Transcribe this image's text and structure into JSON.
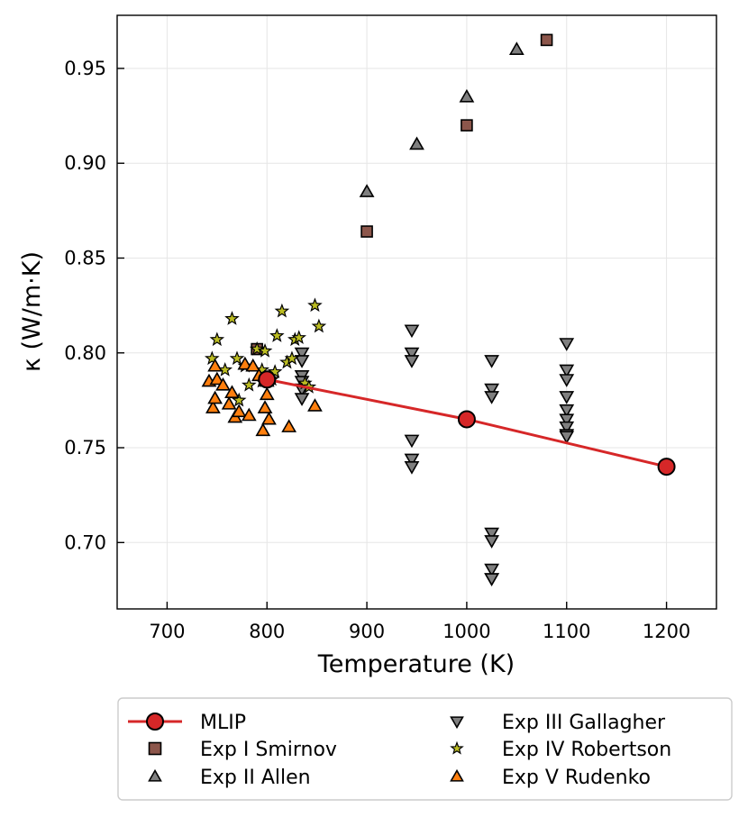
{
  "chart_data": {
    "type": "scatter",
    "title": "",
    "xlabel": "Temperature (K)",
    "ylabel": "κ (W/m·K)",
    "xlim": [
      650,
      1250
    ],
    "ylim": [
      0.665,
      0.978
    ],
    "xticks": [
      700,
      800,
      900,
      1000,
      1100,
      1200
    ],
    "yticks": [
      0.7,
      0.75,
      0.8,
      0.85,
      0.9,
      0.95
    ],
    "xtick_labels": [
      "700",
      "800",
      "900",
      "1000",
      "1100",
      "1200"
    ],
    "ytick_labels": [
      "0.70",
      "0.75",
      "0.80",
      "0.85",
      "0.90",
      "0.95"
    ],
    "grid": true,
    "legend_position": "bottom, outside plot, two columns",
    "series": [
      {
        "name": "MLIP",
        "kind": "line-marker",
        "marker": "circle",
        "color": "#d62728",
        "x": [
          800,
          1000,
          1200
        ],
        "y": [
          0.786,
          0.765,
          0.74
        ]
      },
      {
        "name": "Exp I Smirnov",
        "kind": "scatter",
        "marker": "square",
        "color": "#8c564b",
        "x": [
          790,
          900,
          1000,
          1080
        ],
        "y": [
          0.802,
          0.864,
          0.92,
          0.965
        ]
      },
      {
        "name": "Exp II Allen",
        "kind": "scatter",
        "marker": "triangle-up",
        "color": "#7f7f7f",
        "x": [
          900,
          950,
          1000,
          1050
        ],
        "y": [
          0.885,
          0.91,
          0.935,
          0.96
        ]
      },
      {
        "name": "Exp III Gallagher",
        "kind": "scatter",
        "marker": "triangle-down",
        "color": "#7f7f7f",
        "x": [
          835,
          835,
          835,
          835,
          835,
          835,
          945,
          945,
          945,
          945,
          945,
          945,
          1025,
          1025,
          1025,
          1025,
          1025,
          1025,
          1025,
          1025,
          1100,
          1100,
          1100,
          1100,
          1100,
          1100,
          1100,
          1100,
          1100
        ],
        "y": [
          0.8,
          0.796,
          0.788,
          0.785,
          0.781,
          0.776,
          0.812,
          0.8,
          0.796,
          0.754,
          0.744,
          0.74,
          0.796,
          0.781,
          0.777,
          0.705,
          0.701,
          0.686,
          0.681,
          0.681,
          0.805,
          0.791,
          0.786,
          0.777,
          0.77,
          0.765,
          0.761,
          0.757,
          0.756
        ]
      },
      {
        "name": "Exp IV Robertson",
        "kind": "scatter",
        "marker": "star",
        "color": "#bcbd22",
        "x": [
          745,
          750,
          758,
          765,
          770,
          772,
          778,
          782,
          790,
          795,
          798,
          805,
          810,
          815,
          820,
          825,
          828,
          832,
          838,
          842,
          848,
          852,
          795,
          808
        ],
        "y": [
          0.797,
          0.807,
          0.791,
          0.818,
          0.797,
          0.775,
          0.793,
          0.783,
          0.802,
          0.791,
          0.801,
          0.786,
          0.809,
          0.822,
          0.795,
          0.797,
          0.807,
          0.808,
          0.784,
          0.782,
          0.825,
          0.814,
          0.785,
          0.79
        ]
      },
      {
        "name": "Exp V Rudenko",
        "kind": "scatter",
        "marker": "triangle-up",
        "color": "#ff7f0e",
        "x": [
          742,
          746,
          748,
          748,
          750,
          762,
          765,
          768,
          772,
          778,
          782,
          786,
          796,
          798,
          800,
          800,
          802,
          822,
          848,
          756,
          792
        ],
        "y": [
          0.785,
          0.771,
          0.776,
          0.793,
          0.786,
          0.773,
          0.779,
          0.766,
          0.769,
          0.794,
          0.767,
          0.793,
          0.759,
          0.771,
          0.778,
          0.785,
          0.765,
          0.761,
          0.772,
          0.783,
          0.788
        ]
      }
    ]
  }
}
